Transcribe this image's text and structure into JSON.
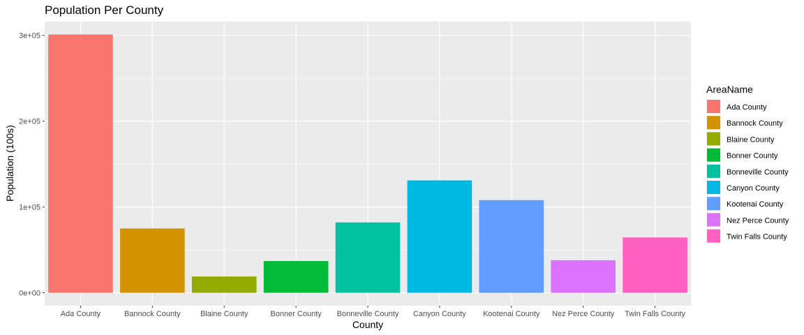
{
  "chart_data": {
    "type": "bar",
    "title": "Population Per County",
    "xlabel": "County",
    "ylabel": "Population (100s)",
    "categories": [
      "Ada County",
      "Bannock County",
      "Blaine County",
      "Bonner County",
      "Bonneville County",
      "Canyon County",
      "Kootenai County",
      "Nez Perce County",
      "Twin Falls County"
    ],
    "values": [
      301000,
      75000,
      19000,
      37000,
      82000,
      131000,
      108000,
      38000,
      64500
    ],
    "colors": [
      "#F8766D",
      "#D39200",
      "#93AA00",
      "#00BA38",
      "#00C19F",
      "#00B9E3",
      "#619CFF",
      "#DB72FB",
      "#FF61C3"
    ],
    "ylim": [
      -15000,
      316000
    ],
    "yticks": [
      0,
      100000,
      200000,
      300000
    ],
    "ytick_labels": [
      "0e+00",
      "1e+05",
      "2e+05",
      "3e+05"
    ],
    "grid": true,
    "legend": {
      "title": "AreaName",
      "position": "right",
      "entries": [
        "Ada County",
        "Bannock County",
        "Blaine County",
        "Bonner County",
        "Bonneville County",
        "Canyon County",
        "Kootenai County",
        "Nez Perce County",
        "Twin Falls County"
      ]
    }
  }
}
